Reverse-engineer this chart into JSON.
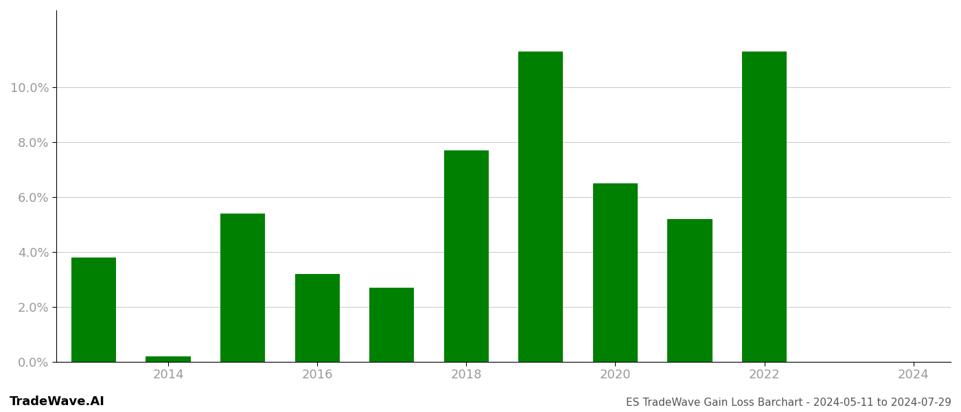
{
  "years": [
    2013,
    2014,
    2015,
    2016,
    2017,
    2018,
    2019,
    2020,
    2021,
    2022,
    2023
  ],
  "values": [
    0.038,
    0.002,
    0.054,
    0.032,
    0.027,
    0.077,
    0.113,
    0.065,
    0.052,
    0.113,
    0.0
  ],
  "bar_color": "#008000",
  "background_color": "#ffffff",
  "ytick_values": [
    0.0,
    0.02,
    0.04,
    0.06,
    0.08,
    0.1
  ],
  "ylim": [
    0,
    0.128
  ],
  "xtick_positions": [
    2014,
    2016,
    2018,
    2020,
    2022,
    2024
  ],
  "xtick_labels": [
    "2014",
    "2016",
    "2018",
    "2020",
    "2022",
    "2024"
  ],
  "xlim": [
    2012.5,
    2024.5
  ],
  "footer_left": "TradeWave.AI",
  "footer_right": "ES TradeWave Gain Loss Barchart - 2024-05-11 to 2024-07-29",
  "tick_color": "#999999",
  "grid_color": "#cccccc",
  "spine_color": "#000000",
  "bar_width": 0.6
}
